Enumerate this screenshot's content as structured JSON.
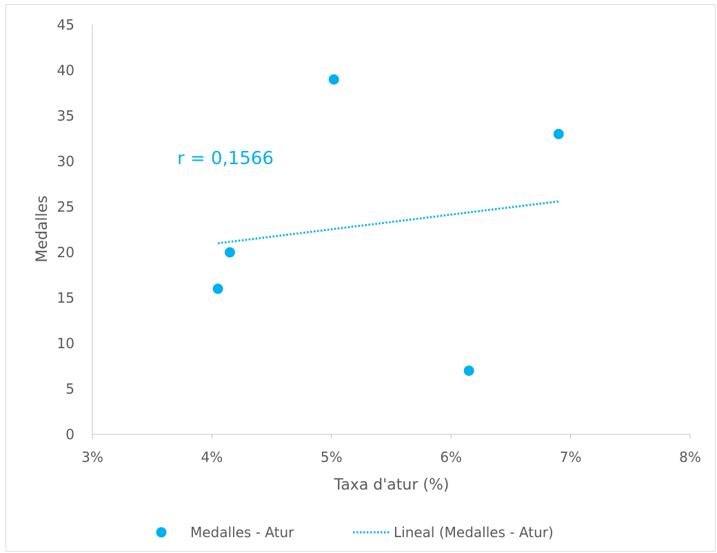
{
  "chart_data": {
    "type": "scatter",
    "title": "",
    "xlabel": "Taxa d'atur (%)",
    "ylabel": "Medalles",
    "xlim": [
      0.03,
      0.08
    ],
    "ylim": [
      0,
      45
    ],
    "x_ticks": [
      0.03,
      0.04,
      0.05,
      0.06,
      0.07,
      0.08
    ],
    "x_tick_labels": [
      "3%",
      "4%",
      "5%",
      "6%",
      "7%",
      "8%"
    ],
    "y_ticks": [
      0,
      5,
      10,
      15,
      20,
      25,
      30,
      35,
      40,
      45
    ],
    "y_tick_labels": [
      "0",
      "5",
      "10",
      "15",
      "20",
      "25",
      "30",
      "35",
      "40",
      "45"
    ],
    "grid": false,
    "legend_position": "bottom",
    "series": [
      {
        "name": "Medalles - Atur",
        "color": "#00b0f0",
        "x": [
          0.0405,
          0.0415,
          0.0502,
          0.0615,
          0.069
        ],
        "y": [
          16,
          20,
          39,
          7,
          33
        ]
      }
    ],
    "trendline": {
      "name": "Lineal (Medalles - Atur)",
      "type": "linear",
      "style": "dotted",
      "color": "#00b0f0",
      "x": [
        0.0405,
        0.069
      ],
      "y": [
        21.0,
        25.6
      ]
    },
    "annotations": [
      {
        "text": "r = 0,1566",
        "color": "#00b0f0"
      }
    ]
  }
}
